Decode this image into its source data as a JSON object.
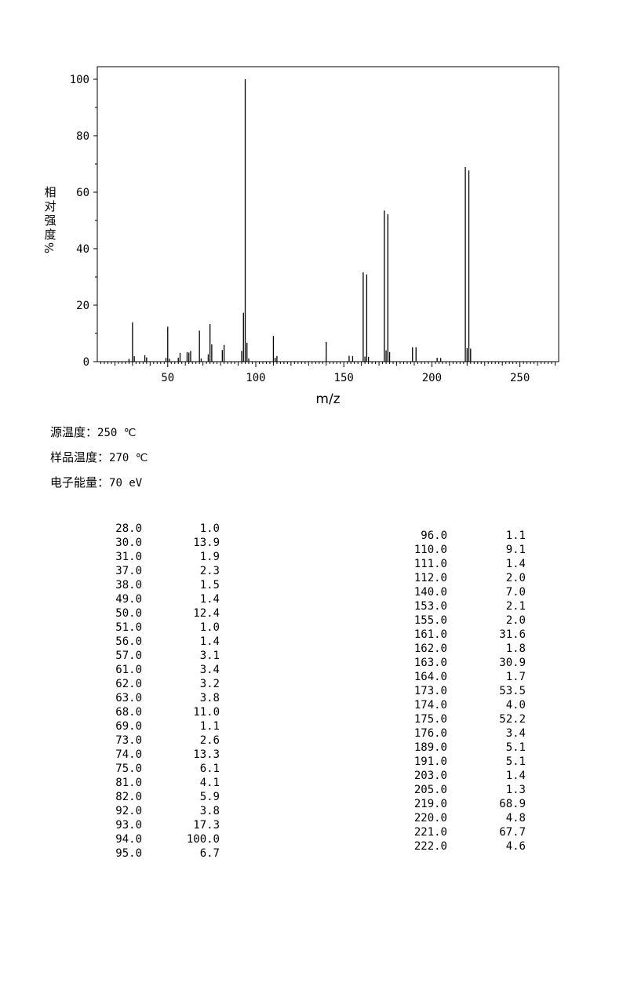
{
  "chart_data": {
    "type": "bar",
    "xlabel": "m/z",
    "ylabel_chars": [
      "相",
      "对",
      "强",
      "度",
      "%"
    ],
    "xlim": [
      10,
      272
    ],
    "ylim": [
      0,
      100
    ],
    "x_ticks": [
      "50",
      "100",
      "150",
      "200",
      "250"
    ],
    "y_ticks": [
      "0",
      "20",
      "40",
      "60",
      "80",
      "100"
    ],
    "peaks": [
      {
        "mz": 28.0,
        "ab": 1.0
      },
      {
        "mz": 30.0,
        "ab": 13.9
      },
      {
        "mz": 31.0,
        "ab": 1.9
      },
      {
        "mz": 37.0,
        "ab": 2.3
      },
      {
        "mz": 38.0,
        "ab": 1.5
      },
      {
        "mz": 49.0,
        "ab": 1.4
      },
      {
        "mz": 50.0,
        "ab": 12.4
      },
      {
        "mz": 51.0,
        "ab": 1.0
      },
      {
        "mz": 56.0,
        "ab": 1.4
      },
      {
        "mz": 57.0,
        "ab": 3.1
      },
      {
        "mz": 61.0,
        "ab": 3.4
      },
      {
        "mz": 62.0,
        "ab": 3.2
      },
      {
        "mz": 63.0,
        "ab": 3.8
      },
      {
        "mz": 68.0,
        "ab": 11.0
      },
      {
        "mz": 69.0,
        "ab": 1.1
      },
      {
        "mz": 73.0,
        "ab": 2.6
      },
      {
        "mz": 74.0,
        "ab": 13.3
      },
      {
        "mz": 75.0,
        "ab": 6.1
      },
      {
        "mz": 81.0,
        "ab": 4.1
      },
      {
        "mz": 82.0,
        "ab": 5.9
      },
      {
        "mz": 92.0,
        "ab": 3.8
      },
      {
        "mz": 93.0,
        "ab": 17.3
      },
      {
        "mz": 94.0,
        "ab": 100.0
      },
      {
        "mz": 95.0,
        "ab": 6.7
      },
      {
        "mz": 96.0,
        "ab": 1.1
      },
      {
        "mz": 110.0,
        "ab": 9.1
      },
      {
        "mz": 111.0,
        "ab": 1.4
      },
      {
        "mz": 112.0,
        "ab": 2.0
      },
      {
        "mz": 140.0,
        "ab": 7.0
      },
      {
        "mz": 153.0,
        "ab": 2.1
      },
      {
        "mz": 155.0,
        "ab": 2.0
      },
      {
        "mz": 161.0,
        "ab": 31.6
      },
      {
        "mz": 162.0,
        "ab": 1.8
      },
      {
        "mz": 163.0,
        "ab": 30.9
      },
      {
        "mz": 164.0,
        "ab": 1.7
      },
      {
        "mz": 173.0,
        "ab": 53.5
      },
      {
        "mz": 174.0,
        "ab": 4.0
      },
      {
        "mz": 175.0,
        "ab": 52.2
      },
      {
        "mz": 176.0,
        "ab": 3.4
      },
      {
        "mz": 189.0,
        "ab": 5.1
      },
      {
        "mz": 191.0,
        "ab": 5.1
      },
      {
        "mz": 203.0,
        "ab": 1.4
      },
      {
        "mz": 205.0,
        "ab": 1.3
      },
      {
        "mz": 219.0,
        "ab": 68.9
      },
      {
        "mz": 220.0,
        "ab": 4.8
      },
      {
        "mz": 221.0,
        "ab": 67.7
      },
      {
        "mz": 222.0,
        "ab": 4.6
      }
    ]
  },
  "conditions": {
    "source_temp_label": "源温度：",
    "source_temp_value": "250 ℃",
    "sample_temp_label": "样品温度：",
    "sample_temp_value": "270 ℃",
    "electron_energy_label": "电子能量：",
    "electron_energy_value": "70 eV"
  },
  "peak_table": {
    "left": [
      [
        "28.0",
        "1.0"
      ],
      [
        "30.0",
        "13.9"
      ],
      [
        "31.0",
        "1.9"
      ],
      [
        "37.0",
        "2.3"
      ],
      [
        "38.0",
        "1.5"
      ],
      [
        "49.0",
        "1.4"
      ],
      [
        "50.0",
        "12.4"
      ],
      [
        "51.0",
        "1.0"
      ],
      [
        "56.0",
        "1.4"
      ],
      [
        "57.0",
        "3.1"
      ],
      [
        "61.0",
        "3.4"
      ],
      [
        "62.0",
        "3.2"
      ],
      [
        "63.0",
        "3.8"
      ],
      [
        "68.0",
        "11.0"
      ],
      [
        "69.0",
        "1.1"
      ],
      [
        "73.0",
        "2.6"
      ],
      [
        "74.0",
        "13.3"
      ],
      [
        "75.0",
        "6.1"
      ],
      [
        "81.0",
        "4.1"
      ],
      [
        "82.0",
        "5.9"
      ],
      [
        "92.0",
        "3.8"
      ],
      [
        "93.0",
        "17.3"
      ],
      [
        "94.0",
        "100.0"
      ],
      [
        "95.0",
        "6.7"
      ]
    ],
    "right": [
      [
        "96.0",
        "1.1"
      ],
      [
        "110.0",
        "9.1"
      ],
      [
        "111.0",
        "1.4"
      ],
      [
        "112.0",
        "2.0"
      ],
      [
        "140.0",
        "7.0"
      ],
      [
        "153.0",
        "2.1"
      ],
      [
        "155.0",
        "2.0"
      ],
      [
        "161.0",
        "31.6"
      ],
      [
        "162.0",
        "1.8"
      ],
      [
        "163.0",
        "30.9"
      ],
      [
        "164.0",
        "1.7"
      ],
      [
        "173.0",
        "53.5"
      ],
      [
        "174.0",
        "4.0"
      ],
      [
        "175.0",
        "52.2"
      ],
      [
        "176.0",
        "3.4"
      ],
      [
        "189.0",
        "5.1"
      ],
      [
        "191.0",
        "5.1"
      ],
      [
        "203.0",
        "1.4"
      ],
      [
        "205.0",
        "1.3"
      ],
      [
        "219.0",
        "68.9"
      ],
      [
        "220.0",
        "4.8"
      ],
      [
        "221.0",
        "67.7"
      ],
      [
        "222.0",
        "4.6"
      ]
    ]
  }
}
